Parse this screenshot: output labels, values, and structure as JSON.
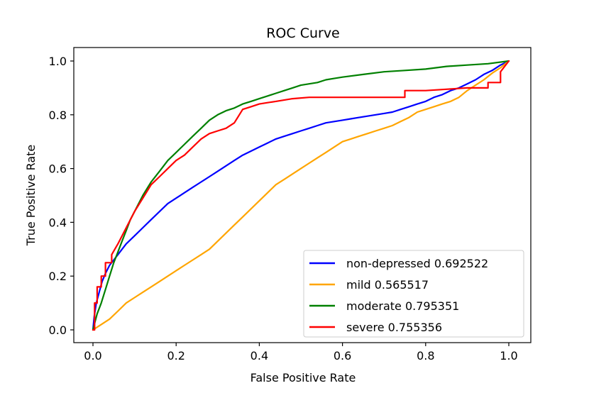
{
  "chart_data": {
    "type": "line",
    "title": "ROC Curve",
    "xlabel": "False Positive Rate",
    "ylabel": "True Positive Rate",
    "xlim": [
      0,
      1
    ],
    "ylim": [
      0,
      1
    ],
    "grid": false,
    "legend_position": "lower-right",
    "x_ticks": [
      {
        "value": 0.0,
        "label": "0.0"
      },
      {
        "value": 0.2,
        "label": "0.2"
      },
      {
        "value": 0.4,
        "label": "0.4"
      },
      {
        "value": 0.6,
        "label": "0.6"
      },
      {
        "value": 0.8,
        "label": "0.8"
      },
      {
        "value": 1.0,
        "label": "1.0"
      }
    ],
    "y_ticks": [
      {
        "value": 0.0,
        "label": "0.0"
      },
      {
        "value": 0.2,
        "label": "0.2"
      },
      {
        "value": 0.4,
        "label": "0.4"
      },
      {
        "value": 0.6,
        "label": "0.6"
      },
      {
        "value": 0.8,
        "label": "0.8"
      },
      {
        "value": 1.0,
        "label": "1.0"
      }
    ],
    "series": [
      {
        "name": "non-depressed",
        "auc": "0.692522",
        "label": "non-depressed 0.692522",
        "color": "#0000ff",
        "x": [
          0,
          0.003,
          0.008,
          0.015,
          0.022,
          0.03,
          0.04,
          0.05,
          0.06,
          0.07,
          0.08,
          0.1,
          0.12,
          0.14,
          0.16,
          0.18,
          0.2,
          0.22,
          0.24,
          0.26,
          0.28,
          0.3,
          0.32,
          0.34,
          0.36,
          0.38,
          0.4,
          0.42,
          0.44,
          0.46,
          0.48,
          0.5,
          0.52,
          0.54,
          0.56,
          0.58,
          0.6,
          0.62,
          0.64,
          0.66,
          0.68,
          0.7,
          0.72,
          0.74,
          0.76,
          0.78,
          0.8,
          0.82,
          0.84,
          0.86,
          0.88,
          0.9,
          0.92,
          0.94,
          0.96,
          0.98,
          1.0
        ],
        "y": [
          0,
          0.05,
          0.1,
          0.14,
          0.18,
          0.21,
          0.24,
          0.26,
          0.28,
          0.3,
          0.32,
          0.35,
          0.38,
          0.41,
          0.44,
          0.47,
          0.49,
          0.51,
          0.53,
          0.55,
          0.57,
          0.59,
          0.61,
          0.63,
          0.65,
          0.665,
          0.68,
          0.695,
          0.71,
          0.72,
          0.73,
          0.74,
          0.75,
          0.76,
          0.77,
          0.775,
          0.78,
          0.785,
          0.79,
          0.795,
          0.8,
          0.805,
          0.81,
          0.82,
          0.83,
          0.84,
          0.85,
          0.865,
          0.875,
          0.89,
          0.9,
          0.915,
          0.93,
          0.95,
          0.965,
          0.985,
          1.0
        ]
      },
      {
        "name": "mild",
        "auc": "0.565517",
        "label": "mild 0.565517",
        "color": "#ffa500",
        "x": [
          0,
          0.02,
          0.04,
          0.06,
          0.08,
          0.1,
          0.12,
          0.14,
          0.16,
          0.18,
          0.2,
          0.22,
          0.24,
          0.26,
          0.28,
          0.3,
          0.32,
          0.34,
          0.36,
          0.38,
          0.4,
          0.42,
          0.44,
          0.46,
          0.48,
          0.5,
          0.52,
          0.54,
          0.56,
          0.58,
          0.6,
          0.62,
          0.64,
          0.66,
          0.68,
          0.7,
          0.72,
          0.74,
          0.76,
          0.78,
          0.8,
          0.82,
          0.84,
          0.86,
          0.88,
          0.9,
          0.92,
          0.94,
          0.96,
          0.98,
          1.0
        ],
        "y": [
          0,
          0.02,
          0.04,
          0.07,
          0.1,
          0.12,
          0.14,
          0.16,
          0.18,
          0.2,
          0.22,
          0.24,
          0.26,
          0.28,
          0.3,
          0.33,
          0.36,
          0.39,
          0.42,
          0.45,
          0.48,
          0.51,
          0.54,
          0.56,
          0.58,
          0.6,
          0.62,
          0.64,
          0.66,
          0.68,
          0.7,
          0.71,
          0.72,
          0.73,
          0.74,
          0.75,
          0.76,
          0.775,
          0.79,
          0.81,
          0.82,
          0.83,
          0.84,
          0.85,
          0.865,
          0.89,
          0.91,
          0.93,
          0.955,
          0.975,
          1.0
        ]
      },
      {
        "name": "moderate",
        "auc": "0.795351",
        "label": "moderate 0.795351",
        "color": "#008000",
        "x": [
          0,
          0.005,
          0.01,
          0.02,
          0.03,
          0.04,
          0.05,
          0.06,
          0.07,
          0.08,
          0.09,
          0.1,
          0.12,
          0.14,
          0.16,
          0.18,
          0.2,
          0.22,
          0.24,
          0.26,
          0.28,
          0.3,
          0.32,
          0.34,
          0.36,
          0.38,
          0.4,
          0.42,
          0.44,
          0.46,
          0.48,
          0.5,
          0.52,
          0.54,
          0.56,
          0.58,
          0.6,
          0.65,
          0.7,
          0.75,
          0.8,
          0.85,
          0.9,
          0.95,
          1.0
        ],
        "y": [
          0,
          0.03,
          0.06,
          0.1,
          0.15,
          0.2,
          0.25,
          0.29,
          0.33,
          0.37,
          0.41,
          0.44,
          0.5,
          0.55,
          0.59,
          0.63,
          0.66,
          0.69,
          0.72,
          0.75,
          0.78,
          0.8,
          0.815,
          0.825,
          0.84,
          0.85,
          0.86,
          0.87,
          0.88,
          0.89,
          0.9,
          0.91,
          0.915,
          0.92,
          0.93,
          0.935,
          0.94,
          0.95,
          0.96,
          0.965,
          0.97,
          0.98,
          0.985,
          0.99,
          1.0
        ]
      },
      {
        "name": "severe",
        "auc": "0.755356",
        "label": "severe 0.755356",
        "color": "#ff0000",
        "x": [
          0,
          0.004,
          0.004,
          0.01,
          0.01,
          0.02,
          0.02,
          0.03,
          0.03,
          0.045,
          0.045,
          0.06,
          0.08,
          0.1,
          0.12,
          0.14,
          0.16,
          0.18,
          0.2,
          0.22,
          0.24,
          0.26,
          0.28,
          0.3,
          0.32,
          0.34,
          0.36,
          0.38,
          0.4,
          0.42,
          0.44,
          0.48,
          0.52,
          0.56,
          0.6,
          0.65,
          0.7,
          0.75,
          0.75,
          0.8,
          0.85,
          0.9,
          0.95,
          0.95,
          0.98,
          0.98,
          1.0
        ],
        "y": [
          0,
          0.0,
          0.1,
          0.1,
          0.16,
          0.16,
          0.2,
          0.2,
          0.25,
          0.25,
          0.28,
          0.32,
          0.38,
          0.44,
          0.49,
          0.54,
          0.57,
          0.6,
          0.63,
          0.65,
          0.68,
          0.71,
          0.73,
          0.74,
          0.75,
          0.77,
          0.82,
          0.83,
          0.84,
          0.845,
          0.85,
          0.86,
          0.865,
          0.865,
          0.865,
          0.865,
          0.865,
          0.865,
          0.89,
          0.89,
          0.895,
          0.9,
          0.9,
          0.92,
          0.92,
          0.96,
          1.0
        ]
      }
    ]
  }
}
